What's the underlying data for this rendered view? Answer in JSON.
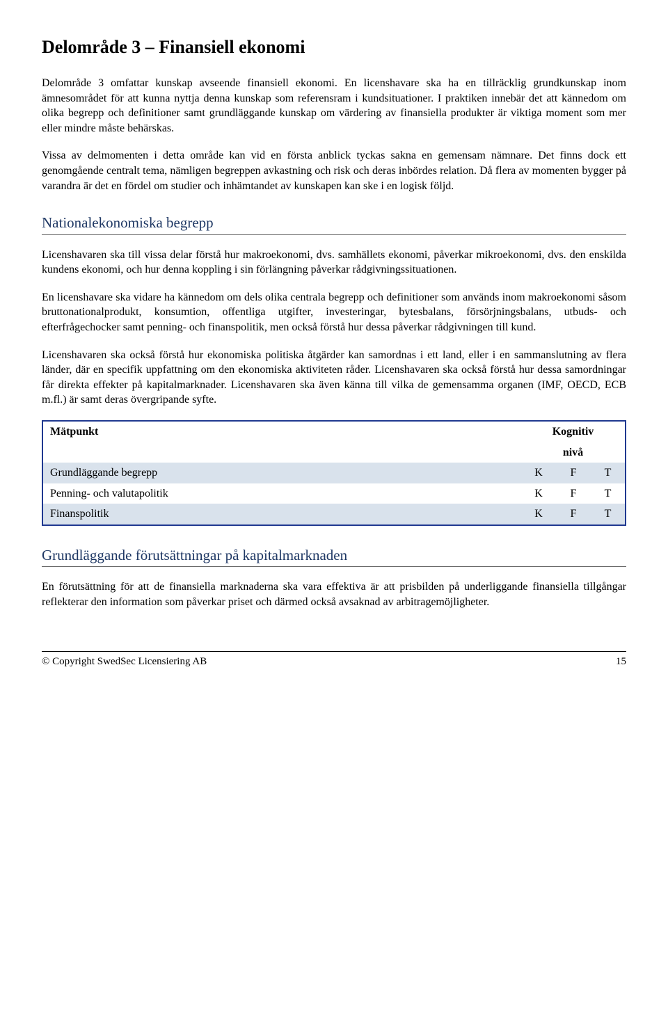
{
  "title": "Delområde 3 – Finansiell ekonomi",
  "intro": {
    "p1": "Delområde 3 omfattar kunskap avseende finansiell ekonomi. En licenshavare ska ha en tillräcklig grundkunskap inom ämnesområdet för att kunna nyttja denna kunskap som referensram i kundsituationer. I praktiken innebär det att kännedom om olika begrepp och definitioner samt grundläggande kunskap om värdering av finansiella produkter är viktiga moment som mer eller mindre måste behärskas.",
    "p2": "Vissa av delmomenten i detta område kan vid en första anblick tyckas sakna en gemensam nämnare. Det finns dock ett genomgående centralt tema, nämligen begreppen avkastning och risk och deras inbördes relation. Då flera av momenten bygger på varandra är det en fördel om studier och inhämtandet av kunskapen kan ske i en logisk följd."
  },
  "section1": {
    "heading": "Nationalekonomiska begrepp",
    "p1": "Licenshavaren ska till vissa delar förstå hur makroekonomi, dvs. samhällets ekonomi, påverkar mikroekonomi, dvs. den enskilda kundens ekonomi, och hur denna koppling i sin förlängning påverkar rådgivningssituationen.",
    "p2": "En licenshavare ska vidare ha kännedom om dels olika centrala begrepp och definitioner som används inom makroekonomi såsom bruttonationalprodukt, konsumtion, offentliga utgifter, investeringar, bytesbalans, försörjningsbalans, utbuds- och efterfrågechocker samt penning- och finanspolitik, men också förstå hur dessa påverkar rådgivningen till kund.",
    "p3": "Licenshavaren ska också förstå hur ekonomiska politiska åtgärder kan samordnas i ett land, eller i en sammanslutning av flera länder, där en specifik uppfattning om den ekonomiska aktiviteten råder. Licenshavaren ska också förstå hur dessa samordningar får direkta effekter på kapitalmarknader. Licenshavaren ska även känna till vilka de gemensamma organen (IMF, OECD, ECB m.fl.) är samt deras övergripande syfte."
  },
  "table": {
    "header_matpunkt": "Mätpunkt",
    "header_kognitiv1": "Kognitiv",
    "header_kognitiv2": "nivå",
    "rows": [
      {
        "label": "Grundläggande begrepp",
        "c1": "K",
        "c2": "F",
        "c3": "T"
      },
      {
        "label": "Penning- och valutapolitik",
        "c1": "K",
        "c2": "F",
        "c3": "T"
      },
      {
        "label": "Finanspolitik",
        "c1": "K",
        "c2": "F",
        "c3": "T"
      }
    ],
    "row_bg_alt": "#d9e2ec",
    "row_bg_plain": "#ffffff",
    "border_color": "#1f3890"
  },
  "section2": {
    "heading": "Grundläggande förutsättningar på kapitalmarknaden",
    "p1": "En förutsättning för att de finansiella marknaderna ska vara effektiva är att prisbilden på underliggande finansiella tillgångar reflekterar den information som påverkar priset och därmed också avsaknad av arbitragemöjligheter."
  },
  "footer": {
    "copyright": "© Copyright SwedSec Licensiering AB",
    "page": "15"
  }
}
